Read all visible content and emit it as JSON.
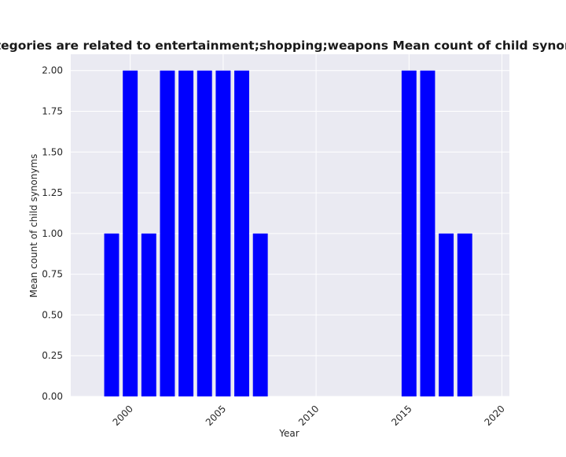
{
  "chart_data": {
    "type": "bar",
    "title": "Companies whose categories are related to entertainment;shopping;weapons Mean count of child synonyms in privacy policies by year",
    "xlabel": "Year",
    "ylabel": "Mean count of child synonyms",
    "x": [
      1999,
      2000,
      2001,
      2002,
      2003,
      2004,
      2005,
      2006,
      2007,
      2015,
      2016,
      2017,
      2018
    ],
    "values": [
      1,
      2,
      1,
      2,
      2,
      2,
      2,
      2,
      1,
      2,
      2,
      1,
      1
    ],
    "xlim": [
      1996.8,
      2020.4
    ],
    "ylim": [
      0,
      2.1
    ],
    "xticks": [
      2000,
      2005,
      2010,
      2015,
      2020
    ],
    "xtick_labels": [
      "2000",
      "2005",
      "2010",
      "2015",
      "2020"
    ],
    "yticks": [
      0,
      0.25,
      0.5,
      0.75,
      1.0,
      1.25,
      1.5,
      1.75,
      2.0
    ],
    "ytick_labels": [
      "0.00",
      "0.25",
      "0.50",
      "0.75",
      "1.00",
      "1.25",
      "1.50",
      "1.75",
      "2.00"
    ],
    "bar_color": "#0000ff",
    "background_color": "#eaeaf2",
    "grid": true
  }
}
